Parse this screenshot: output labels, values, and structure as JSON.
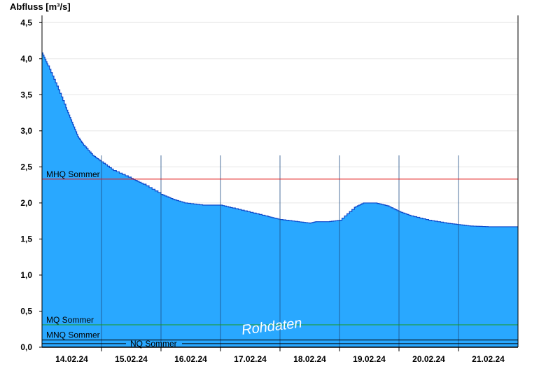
{
  "chart_data": {
    "type": "area",
    "ylabel": "Abfluss [m³/s]",
    "ylim": [
      0,
      4.6
    ],
    "yticks": [
      0,
      0.5,
      1.0,
      1.5,
      2.0,
      2.5,
      3.0,
      3.5,
      4.0,
      4.5
    ],
    "ytick_labels": [
      "0,0",
      "0,5",
      "1,0",
      "1,5",
      "2,0",
      "2,5",
      "3,0",
      "3,5",
      "4,0",
      "4,5"
    ],
    "xlim_days": [
      13.5,
      21.5
    ],
    "xticks": [
      {
        "day": 14,
        "label": "14.02.24"
      },
      {
        "day": 15,
        "label": "15.02.24"
      },
      {
        "day": 16,
        "label": "16.02.24"
      },
      {
        "day": 17,
        "label": "17.02.24"
      },
      {
        "day": 18,
        "label": "18.02.24"
      },
      {
        "day": 19,
        "label": "19.02.24"
      },
      {
        "day": 20,
        "label": "20.02.24"
      },
      {
        "day": 21,
        "label": "21.02.24"
      }
    ],
    "grid": "horizontal",
    "fill_color": "#29a8ff",
    "series": [
      {
        "x_days": [
          13.5,
          13.6,
          13.75,
          13.9,
          14.0,
          14.1,
          14.2,
          14.35,
          14.5,
          14.7,
          15.0,
          15.2,
          15.5,
          15.7,
          15.9,
          16.2,
          16.5,
          16.7,
          17.0,
          17.3,
          17.5,
          17.8,
          18.0,
          18.1,
          18.3,
          18.5,
          18.75,
          18.9,
          19.1,
          19.3,
          19.5,
          19.7,
          20.0,
          20.3,
          20.5,
          20.7,
          21.0,
          21.5
        ],
        "values": [
          4.08,
          3.9,
          3.62,
          3.32,
          3.12,
          2.92,
          2.8,
          2.66,
          2.57,
          2.45,
          2.34,
          2.26,
          2.12,
          2.05,
          2.0,
          1.97,
          1.97,
          1.93,
          1.87,
          1.81,
          1.77,
          1.74,
          1.72,
          1.74,
          1.74,
          1.76,
          1.94,
          2.0,
          2.0,
          1.96,
          1.88,
          1.82,
          1.76,
          1.72,
          1.7,
          1.68,
          1.67,
          1.67
        ]
      }
    ],
    "reference_lines": [
      {
        "name": "MHQ Sommer",
        "value": 2.33,
        "color": "#e01818"
      },
      {
        "name": "MQ Sommer",
        "value": 0.31,
        "color": "#1a9a1a"
      },
      {
        "name": "MNQ Sommer",
        "value": 0.1,
        "color": "#000000"
      },
      {
        "name": "NQ Sommer",
        "value": 0.05,
        "color": "#000000"
      }
    ],
    "watermark": "Rohdaten"
  }
}
